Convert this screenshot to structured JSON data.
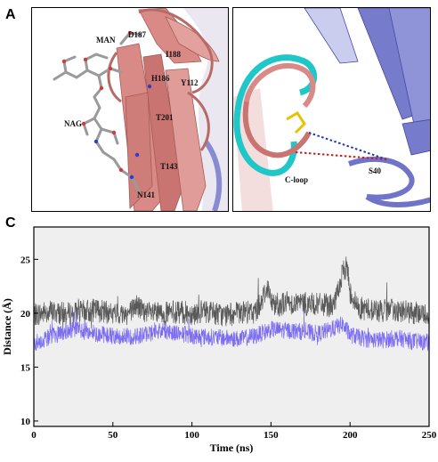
{
  "panels": {
    "a": {
      "letter": "A",
      "labels": {
        "man": "MAN",
        "d187": "D187",
        "i188": "I188",
        "h186": "H186",
        "y112": "Y112",
        "nag": "NAG",
        "t201": "T201",
        "t143": "T143",
        "n141": "N141"
      }
    },
    "b": {
      "letter": "B",
      "labels": {
        "cloop": "C-loop",
        "s40": "S40"
      }
    },
    "c": {
      "letter": "C"
    }
  },
  "colors": {
    "gray_series": "#595959",
    "blue_series": "#7b6cf2",
    "plot_bg": "#efefef",
    "salmon": "#d98a86",
    "slate_blue": "#6f74c9",
    "cyan": "#1fc7c9",
    "blue_dash": "#1f33b8",
    "red_dash": "#c0201f"
  },
  "chart_data": {
    "type": "line",
    "xlabel": "Time (ns)",
    "ylabel": "Distance (Å)",
    "xlim": [
      0,
      250
    ],
    "ylim": [
      9.5,
      28
    ],
    "xticks": [
      0,
      50,
      100,
      150,
      200,
      250
    ],
    "yticks": [
      10,
      15,
      20,
      25
    ],
    "series": [
      {
        "color": "gray",
        "x": [
          0,
          10,
          20,
          30,
          40,
          50,
          60,
          65,
          70,
          80,
          90,
          100,
          110,
          120,
          130,
          140,
          145,
          148,
          150,
          155,
          160,
          170,
          180,
          190,
          195,
          198,
          200,
          205,
          210,
          220,
          230,
          240,
          250
        ],
        "y": [
          19.8,
          20.2,
          19.9,
          20.1,
          20.3,
          19.9,
          20.0,
          20.8,
          20.0,
          19.9,
          20.1,
          20.0,
          20.2,
          19.8,
          20.0,
          20.1,
          21.5,
          22.5,
          21.0,
          20.8,
          21.0,
          20.9,
          20.8,
          20.7,
          23.5,
          24.5,
          22.0,
          20.5,
          20.4,
          20.2,
          20.3,
          20.0,
          19.9
        ]
      },
      {
        "color": "blue",
        "x": [
          0,
          10,
          20,
          30,
          40,
          50,
          60,
          70,
          80,
          90,
          100,
          110,
          120,
          130,
          140,
          150,
          160,
          170,
          180,
          190,
          195,
          200,
          210,
          220,
          230,
          240,
          250
        ],
        "y": [
          17.2,
          17.8,
          18.3,
          18.5,
          18.1,
          17.9,
          17.8,
          18.0,
          18.4,
          18.2,
          17.9,
          17.8,
          17.7,
          17.6,
          17.9,
          18.5,
          18.4,
          18.3,
          18.1,
          18.6,
          19.0,
          18.0,
          17.6,
          17.5,
          17.7,
          17.4,
          17.3
        ]
      }
    ]
  }
}
